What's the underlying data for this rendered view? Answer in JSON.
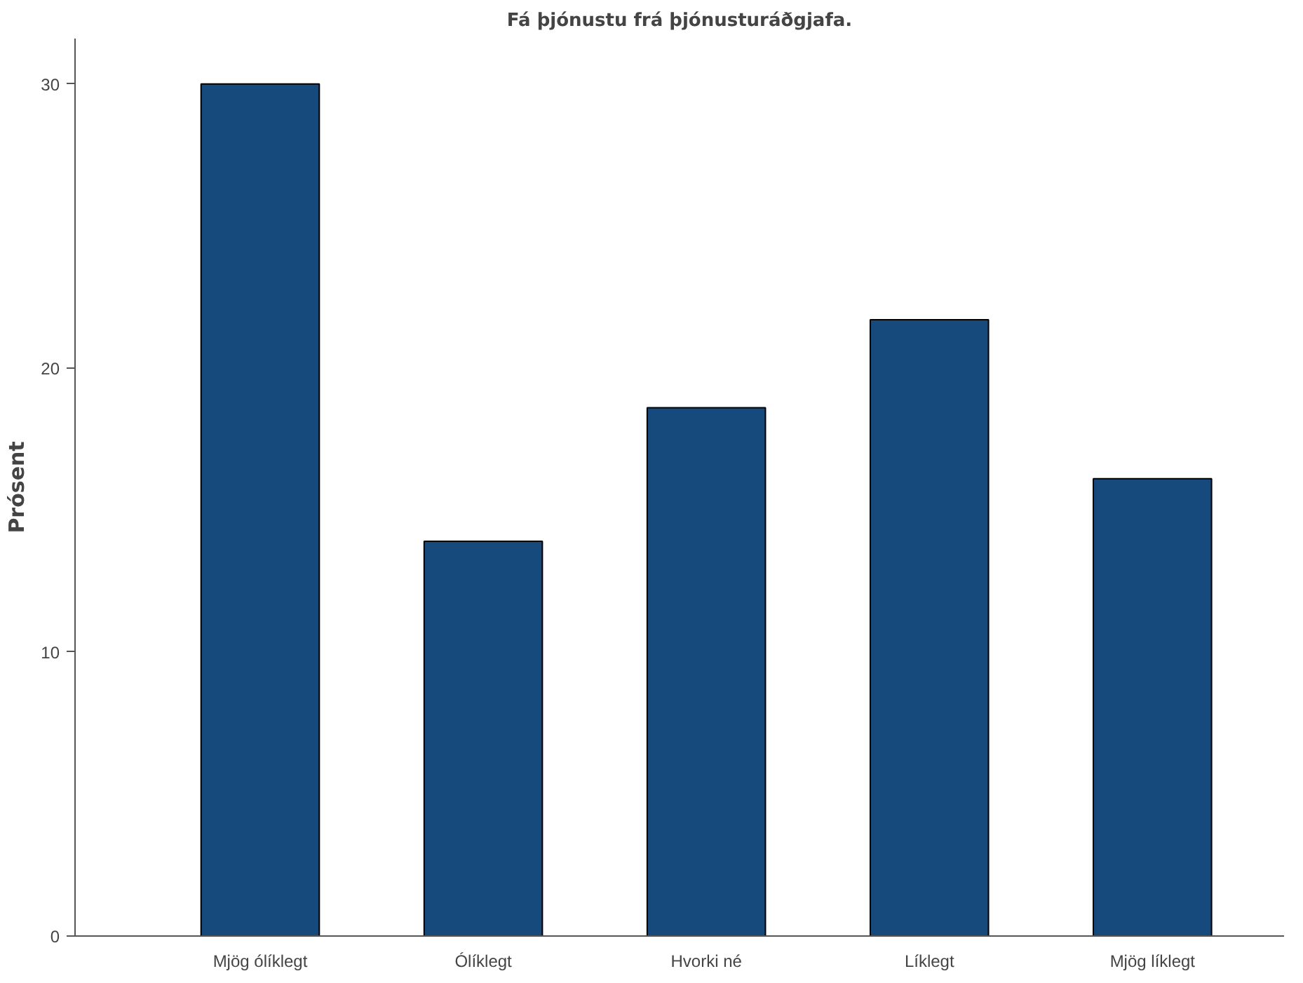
{
  "chart_data": {
    "type": "bar",
    "title": "Fá þjónustu frá þjónusturáðgjafa.",
    "ylabel": "Prósent",
    "categories": [
      "Mjög ólíklegt",
      "Ólíklegt",
      "Hvorki né",
      "Líklegt",
      "Mjög líklegt"
    ],
    "values": [
      30.0,
      13.9,
      18.6,
      21.7,
      16.1
    ],
    "color": "#174a7c",
    "ylim": [
      0,
      31.6
    ],
    "yticks": [
      0,
      10,
      20,
      30
    ],
    "grid": false
  }
}
